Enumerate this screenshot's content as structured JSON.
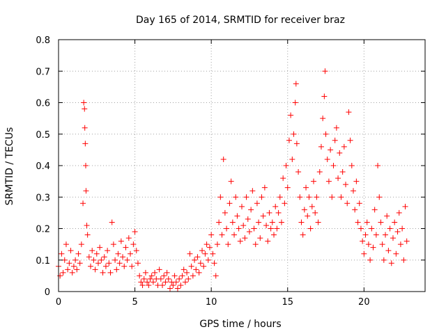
{
  "chart_data": {
    "type": "scatter",
    "title": "Day 165 of 2014, SRMTID for receiver braz",
    "xlabel": "GPS time / hours",
    "ylabel": "SRMTID / TECUs",
    "xlim": [
      0,
      24
    ],
    "ylim": [
      0,
      0.8
    ],
    "xticks": [
      "0",
      "5",
      "10",
      "15",
      "20"
    ],
    "yticks": [
      "0",
      "0.1",
      "0.2",
      "0.3",
      "0.4",
      "0.5",
      "0.6",
      "0.7",
      "0.8"
    ],
    "grid": true,
    "marker": "+",
    "color": "#ff0000",
    "series": [
      {
        "name": "SRMTID",
        "points": [
          [
            0.0,
            0.08
          ],
          [
            0.1,
            0.05
          ],
          [
            0.2,
            0.12
          ],
          [
            0.3,
            0.06
          ],
          [
            0.4,
            0.1
          ],
          [
            0.5,
            0.15
          ],
          [
            0.6,
            0.07
          ],
          [
            0.7,
            0.09
          ],
          [
            0.8,
            0.13
          ],
          [
            0.9,
            0.06
          ],
          [
            1.0,
            0.08
          ],
          [
            1.1,
            0.1
          ],
          [
            1.2,
            0.07
          ],
          [
            1.3,
            0.12
          ],
          [
            1.4,
            0.09
          ],
          [
            1.5,
            0.15
          ],
          [
            1.6,
            0.28
          ],
          [
            1.65,
            0.6
          ],
          [
            1.7,
            0.58
          ],
          [
            1.72,
            0.52
          ],
          [
            1.75,
            0.47
          ],
          [
            1.78,
            0.4
          ],
          [
            1.8,
            0.32
          ],
          [
            1.85,
            0.21
          ],
          [
            1.9,
            0.18
          ],
          [
            2.0,
            0.11
          ],
          [
            2.1,
            0.08
          ],
          [
            2.2,
            0.13
          ],
          [
            2.3,
            0.1
          ],
          [
            2.4,
            0.07
          ],
          [
            2.5,
            0.12
          ],
          [
            2.6,
            0.09
          ],
          [
            2.7,
            0.14
          ],
          [
            2.8,
            0.1
          ],
          [
            2.9,
            0.06
          ],
          [
            3.0,
            0.11
          ],
          [
            3.1,
            0.08
          ],
          [
            3.2,
            0.13
          ],
          [
            3.3,
            0.09
          ],
          [
            3.4,
            0.06
          ],
          [
            3.5,
            0.22
          ],
          [
            3.6,
            0.15
          ],
          [
            3.7,
            0.1
          ],
          [
            3.8,
            0.07
          ],
          [
            3.9,
            0.12
          ],
          [
            4.0,
            0.09
          ],
          [
            4.1,
            0.16
          ],
          [
            4.2,
            0.11
          ],
          [
            4.3,
            0.08
          ],
          [
            4.4,
            0.14
          ],
          [
            4.5,
            0.1
          ],
          [
            4.6,
            0.17
          ],
          [
            4.7,
            0.12
          ],
          [
            4.8,
            0.08
          ],
          [
            4.9,
            0.15
          ],
          [
            5.0,
            0.19
          ],
          [
            5.1,
            0.13
          ],
          [
            5.2,
            0.09
          ],
          [
            5.3,
            0.05
          ],
          [
            5.4,
            0.03
          ],
          [
            5.5,
            0.02
          ],
          [
            5.6,
            0.04
          ],
          [
            5.7,
            0.06
          ],
          [
            5.8,
            0.03
          ],
          [
            5.9,
            0.02
          ],
          [
            6.0,
            0.04
          ],
          [
            6.1,
            0.05
          ],
          [
            6.2,
            0.03
          ],
          [
            6.3,
            0.06
          ],
          [
            6.4,
            0.04
          ],
          [
            6.5,
            0.02
          ],
          [
            6.6,
            0.07
          ],
          [
            6.7,
            0.04
          ],
          [
            6.8,
            0.02
          ],
          [
            6.9,
            0.05
          ],
          [
            7.0,
            0.03
          ],
          [
            7.1,
            0.06
          ],
          [
            7.2,
            0.04
          ],
          [
            7.3,
            0.01
          ],
          [
            7.4,
            0.03
          ],
          [
            7.5,
            0.02
          ],
          [
            7.6,
            0.05
          ],
          [
            7.7,
            0.03
          ],
          [
            7.8,
            0.01
          ],
          [
            7.9,
            0.04
          ],
          [
            8.0,
            0.02
          ],
          [
            8.1,
            0.05
          ],
          [
            8.2,
            0.07
          ],
          [
            8.3,
            0.03
          ],
          [
            8.4,
            0.06
          ],
          [
            8.5,
            0.04
          ],
          [
            8.6,
            0.12
          ],
          [
            8.7,
            0.08
          ],
          [
            8.8,
            0.05
          ],
          [
            8.9,
            0.1
          ],
          [
            9.0,
            0.07
          ],
          [
            9.1,
            0.11
          ],
          [
            9.2,
            0.06
          ],
          [
            9.3,
            0.09
          ],
          [
            9.4,
            0.13
          ],
          [
            9.5,
            0.08
          ],
          [
            9.6,
            0.12
          ],
          [
            9.7,
            0.15
          ],
          [
            9.8,
            0.1
          ],
          [
            9.9,
            0.14
          ],
          [
            10.0,
            0.18
          ],
          [
            10.1,
            0.12
          ],
          [
            10.2,
            0.09
          ],
          [
            10.3,
            0.05
          ],
          [
            10.4,
            0.15
          ],
          [
            10.5,
            0.22
          ],
          [
            10.6,
            0.3
          ],
          [
            10.7,
            0.18
          ],
          [
            10.8,
            0.42
          ],
          [
            10.9,
            0.25
          ],
          [
            11.0,
            0.2
          ],
          [
            11.1,
            0.15
          ],
          [
            11.2,
            0.28
          ],
          [
            11.3,
            0.35
          ],
          [
            11.4,
            0.22
          ],
          [
            11.5,
            0.18
          ],
          [
            11.6,
            0.3
          ],
          [
            11.7,
            0.24
          ],
          [
            11.8,
            0.2
          ],
          [
            11.9,
            0.16
          ],
          [
            12.0,
            0.27
          ],
          [
            12.1,
            0.21
          ],
          [
            12.2,
            0.17
          ],
          [
            12.3,
            0.3
          ],
          [
            12.4,
            0.23
          ],
          [
            12.5,
            0.19
          ],
          [
            12.6,
            0.26
          ],
          [
            12.7,
            0.32
          ],
          [
            12.8,
            0.2
          ],
          [
            12.9,
            0.15
          ],
          [
            13.0,
            0.28
          ],
          [
            13.1,
            0.22
          ],
          [
            13.2,
            0.17
          ],
          [
            13.3,
            0.3
          ],
          [
            13.4,
            0.24
          ],
          [
            13.5,
            0.33
          ],
          [
            13.6,
            0.21
          ],
          [
            13.7,
            0.16
          ],
          [
            13.8,
            0.25
          ],
          [
            13.9,
            0.2
          ],
          [
            14.0,
            0.22
          ],
          [
            14.1,
            0.18
          ],
          [
            14.2,
            0.27
          ],
          [
            14.3,
            0.2
          ],
          [
            14.4,
            0.25
          ],
          [
            14.5,
            0.3
          ],
          [
            14.6,
            0.22
          ],
          [
            14.7,
            0.36
          ],
          [
            14.8,
            0.28
          ],
          [
            14.9,
            0.4
          ],
          [
            15.0,
            0.33
          ],
          [
            15.1,
            0.48
          ],
          [
            15.2,
            0.56
          ],
          [
            15.3,
            0.42
          ],
          [
            15.4,
            0.5
          ],
          [
            15.5,
            0.6
          ],
          [
            15.55,
            0.66
          ],
          [
            15.6,
            0.47
          ],
          [
            15.7,
            0.38
          ],
          [
            15.8,
            0.3
          ],
          [
            15.9,
            0.22
          ],
          [
            16.0,
            0.18
          ],
          [
            16.1,
            0.26
          ],
          [
            16.2,
            0.33
          ],
          [
            16.3,
            0.24
          ],
          [
            16.4,
            0.3
          ],
          [
            16.5,
            0.2
          ],
          [
            16.6,
            0.27
          ],
          [
            16.7,
            0.35
          ],
          [
            16.8,
            0.25
          ],
          [
            16.9,
            0.3
          ],
          [
            17.0,
            0.22
          ],
          [
            17.1,
            0.38
          ],
          [
            17.2,
            0.46
          ],
          [
            17.3,
            0.55
          ],
          [
            17.4,
            0.62
          ],
          [
            17.45,
            0.7
          ],
          [
            17.5,
            0.5
          ],
          [
            17.6,
            0.42
          ],
          [
            17.7,
            0.35
          ],
          [
            17.8,
            0.45
          ],
          [
            17.9,
            0.3
          ],
          [
            18.0,
            0.4
          ],
          [
            18.1,
            0.48
          ],
          [
            18.2,
            0.52
          ],
          [
            18.3,
            0.36
          ],
          [
            18.4,
            0.44
          ],
          [
            18.5,
            0.3
          ],
          [
            18.6,
            0.38
          ],
          [
            18.7,
            0.46
          ],
          [
            18.8,
            0.34
          ],
          [
            18.9,
            0.28
          ],
          [
            19.0,
            0.57
          ],
          [
            19.1,
            0.48
          ],
          [
            19.2,
            0.4
          ],
          [
            19.3,
            0.32
          ],
          [
            19.4,
            0.26
          ],
          [
            19.5,
            0.35
          ],
          [
            19.6,
            0.22
          ],
          [
            19.7,
            0.28
          ],
          [
            19.8,
            0.2
          ],
          [
            19.9,
            0.16
          ],
          [
            20.0,
            0.12
          ],
          [
            20.1,
            0.18
          ],
          [
            20.2,
            0.22
          ],
          [
            20.3,
            0.15
          ],
          [
            20.4,
            0.1
          ],
          [
            20.5,
            0.2
          ],
          [
            20.6,
            0.14
          ],
          [
            20.7,
            0.26
          ],
          [
            20.8,
            0.18
          ],
          [
            20.9,
            0.4
          ],
          [
            21.0,
            0.3
          ],
          [
            21.1,
            0.22
          ],
          [
            21.2,
            0.15
          ],
          [
            21.3,
            0.1
          ],
          [
            21.4,
            0.18
          ],
          [
            21.5,
            0.24
          ],
          [
            21.6,
            0.13
          ],
          [
            21.7,
            0.2
          ],
          [
            21.8,
            0.09
          ],
          [
            21.9,
            0.17
          ],
          [
            22.0,
            0.22
          ],
          [
            22.1,
            0.12
          ],
          [
            22.2,
            0.19
          ],
          [
            22.3,
            0.25
          ],
          [
            22.4,
            0.15
          ],
          [
            22.5,
            0.2
          ],
          [
            22.6,
            0.1
          ],
          [
            22.7,
            0.27
          ],
          [
            22.8,
            0.16
          ]
        ]
      }
    ]
  }
}
